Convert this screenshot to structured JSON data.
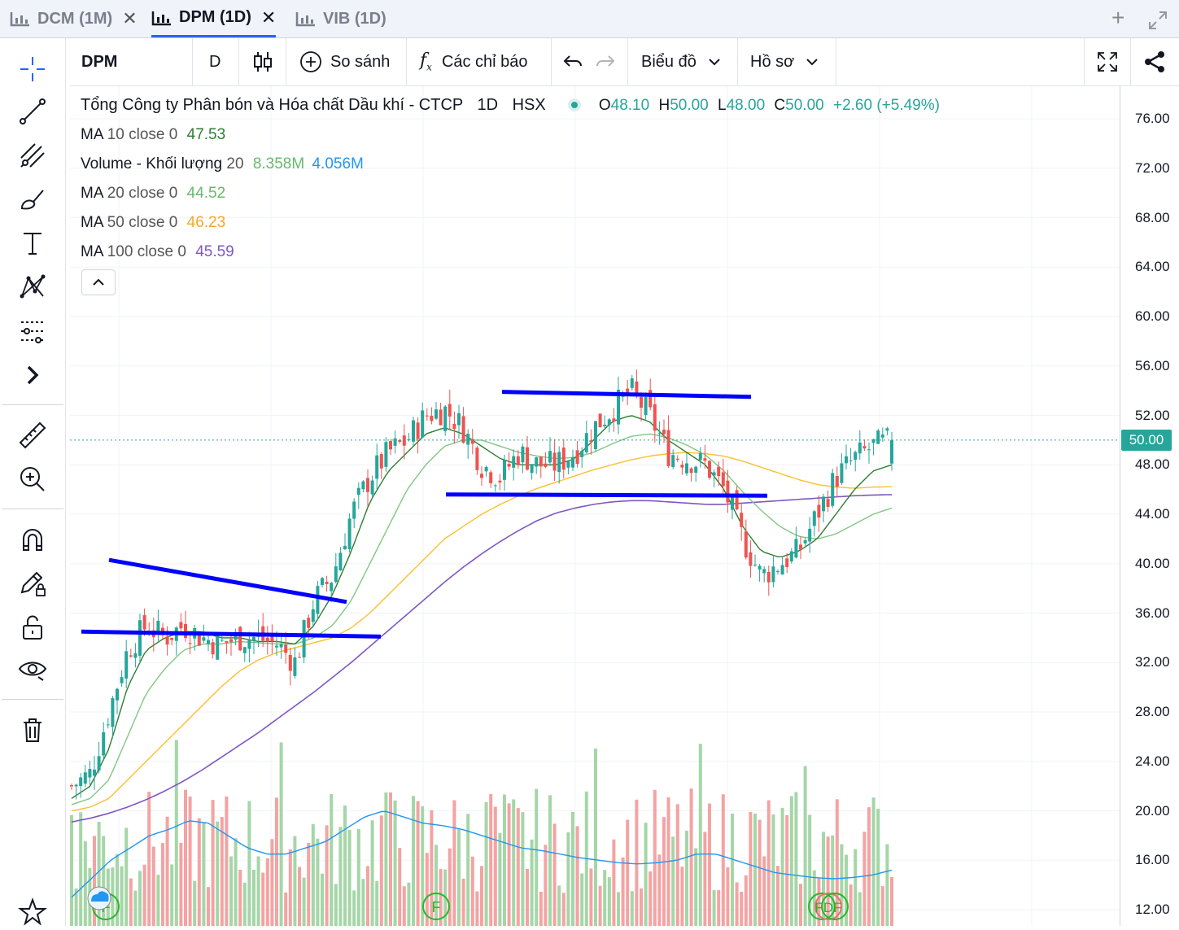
{
  "tabs": [
    {
      "label": "DCM (1M)",
      "active": false
    },
    {
      "label": "DPM (1D)",
      "active": true
    },
    {
      "label": "VIB (1D)",
      "active": false
    }
  ],
  "toolbar": {
    "symbol": "DPM",
    "interval": "D",
    "compare_label": "So sánh",
    "indicators_label": "Các chỉ báo",
    "chart_label": "Biểu đồ",
    "profile_label": "Hồ sơ"
  },
  "legend": {
    "title": "Tổng Công ty Phân bón và Hóa chất Dầu khí - CTCP",
    "interval": "1D",
    "exchange": "HSX",
    "o_label": "O",
    "o": "48.10",
    "h_label": "H",
    "h": "50.00",
    "l_label": "L",
    "l": "48.00",
    "c_label": "C",
    "c": "50.00",
    "change": "+2.60 (+5.49%)",
    "ma10_name": "MA",
    "ma10_params": "10 close 0",
    "ma10_value": "47.53",
    "vol_name": "Volume - Khối lượng",
    "vol_params": "20",
    "vol_value": "8.358M",
    "vol_ma": "4.056M",
    "ma20_name": "MA",
    "ma20_params": "20 close 0",
    "ma20_value": "44.52",
    "ma50_name": "MA",
    "ma50_params": "50 close 0",
    "ma50_value": "46.23",
    "ma100_name": "MA",
    "ma100_params": "100 close 0",
    "ma100_value": "45.59"
  },
  "colors": {
    "up": "#26a69a",
    "down": "#ef5350",
    "vol_up": "#a5d6a7",
    "vol_down": "#f4a3a3",
    "ma10": "#2e7d32",
    "ma20": "#81c784",
    "ma50": "#fbc02d",
    "ma100": "#7e57c2",
    "vol_ma": "#2196f3",
    "trendline": "#0000ff",
    "accent": "#2962ff"
  },
  "axis": {
    "labels": [
      "76.00",
      "72.00",
      "68.00",
      "64.00",
      "60.00",
      "56.00",
      "52.00",
      "48.00",
      "44.00",
      "40.00",
      "36.00",
      "32.00",
      "28.00",
      "24.00",
      "20.00",
      "16.00",
      "12.00"
    ],
    "last_price": "50.00"
  },
  "chart_data": {
    "type": "candlestick",
    "y_range": [
      11.5,
      77
    ],
    "last_close": 50.0,
    "ohlc_summary": {
      "open": 48.1,
      "high": 50.0,
      "low": 48.0,
      "close": 50.0
    },
    "trendlines_price": [
      {
        "from": 40.3,
        "to": 36.9
      },
      {
        "from": 34.5,
        "to": 34.1
      },
      {
        "from": 53.9,
        "to": 53.5
      },
      {
        "from": 45.6,
        "to": 45.5
      }
    ],
    "price_anchors": [
      22,
      23,
      28,
      33,
      35,
      34,
      35,
      34,
      33.5,
      34,
      34,
      33.5,
      32,
      37,
      39,
      44,
      47,
      49,
      50,
      52,
      52.5,
      51,
      48,
      47,
      49,
      48,
      48,
      49,
      51,
      52.5,
      54,
      52,
      49,
      48.5,
      48,
      46,
      42,
      39,
      40,
      41,
      44,
      47,
      48.5,
      49.5,
      50
    ],
    "ma10_anchors": [
      21,
      22,
      25,
      30,
      33,
      34,
      34.5,
      34.5,
      34,
      34,
      33.7,
      33.7,
      33.5,
      35,
      37.5,
      41,
      45,
      47.5,
      49,
      50.5,
      51,
      50.5,
      49.5,
      48.5,
      48,
      48,
      48,
      48.5,
      50,
      51.5,
      52,
      51.5,
      50,
      49,
      48,
      46,
      43,
      41,
      40.5,
      41,
      42,
      44,
      46,
      47.5,
      48
    ],
    "ma20_anchors": [
      20.5,
      21,
      22.5,
      26,
      29.5,
      31.5,
      33,
      33.5,
      33.5,
      33.7,
      33.6,
      33.5,
      33.5,
      34,
      35,
      37,
      40,
      43,
      46,
      48,
      49.5,
      50,
      50,
      49.5,
      49,
      48.7,
      48.5,
      48.6,
      49,
      49.7,
      50.3,
      50.5,
      50.2,
      49.6,
      48.8,
      47.5,
      45.8,
      44.3,
      43,
      42.2,
      42,
      42.4,
      43.2,
      44,
      44.5
    ],
    "ma50_anchors": [
      20,
      20.3,
      21,
      22.5,
      24,
      25.5,
      27,
      28.5,
      30,
      31.3,
      32.2,
      32.8,
      33.2,
      33.6,
      34,
      34.8,
      36,
      37.5,
      39,
      40.5,
      42,
      43,
      44,
      44.8,
      45.5,
      46.1,
      46.6,
      47.1,
      47.6,
      48,
      48.4,
      48.7,
      48.9,
      49,
      48.9,
      48.7,
      48.3,
      47.8,
      47.3,
      46.8,
      46.4,
      46.2,
      46.1,
      46.2,
      46.23
    ],
    "ma100_anchors": [
      19.1,
      19.4,
      19.8,
      20.3,
      20.9,
      21.6,
      22.4,
      23.3,
      24.3,
      25.3,
      26.3,
      27.4,
      28.5,
      29.6,
      30.8,
      32,
      33.3,
      34.6,
      35.9,
      37.2,
      38.5,
      39.7,
      40.8,
      41.8,
      42.7,
      43.5,
      44.1,
      44.5,
      44.8,
      45,
      45.1,
      45.1,
      45,
      44.9,
      44.8,
      44.8,
      44.9,
      45,
      45.1,
      45.2,
      45.3,
      45.4,
      45.5,
      45.55,
      45.59
    ],
    "volume_ma_anchors": [
      13,
      14.5,
      16,
      17,
      18,
      18.5,
      19.2,
      19,
      18,
      17,
      16.5,
      16.5,
      17,
      17.5,
      18.5,
      19.5,
      20,
      19.5,
      19,
      18.8,
      18.5,
      18,
      17.5,
      17,
      16.8,
      16.5,
      16.2,
      16,
      15.8,
      15.7,
      15.8,
      16,
      16.5,
      16.5,
      16,
      15.5,
      15,
      14.8,
      14.6,
      14.5,
      14.6,
      14.8,
      15.2
    ]
  }
}
